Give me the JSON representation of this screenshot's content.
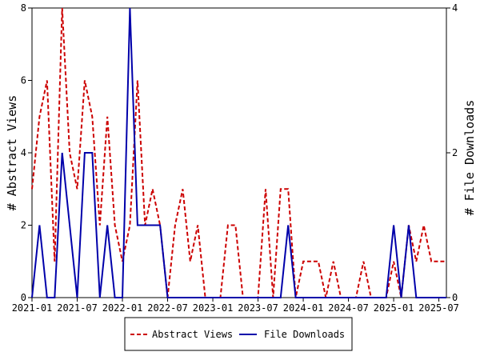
{
  "chart_data": {
    "type": "line",
    "y_left_label": "# Abstract Views",
    "y_right_label": "# File Downloads",
    "x_tick_labels": [
      "2021-01",
      "2021-07",
      "2022-01",
      "2022-07",
      "2023-01",
      "2023-07",
      "2024-01",
      "2024-07",
      "2025-01",
      "2025-07"
    ],
    "y_left_ticks": [
      0,
      2,
      4,
      6,
      8
    ],
    "y_right_ticks": [
      0,
      2,
      4
    ],
    "y_left_range": [
      0,
      8
    ],
    "y_right_range": [
      0,
      4
    ],
    "x_range_months": [
      "2021-01",
      "2025-08"
    ],
    "legend_position": "bottom-center",
    "series": [
      {
        "name": "Abstract Views",
        "axis": "left",
        "color": "#cc0000",
        "style": "dashed",
        "x": [
          "2021-01",
          "2021-02",
          "2021-03",
          "2021-04",
          "2021-05",
          "2021-06",
          "2021-07",
          "2021-08",
          "2021-09",
          "2021-10",
          "2021-11",
          "2021-12",
          "2022-01",
          "2022-02",
          "2022-03",
          "2022-04",
          "2022-05",
          "2022-06",
          "2022-07",
          "2022-08",
          "2022-09",
          "2022-10",
          "2022-11",
          "2022-12",
          "2023-01",
          "2023-02",
          "2023-03",
          "2023-04",
          "2023-05",
          "2023-06",
          "2023-07",
          "2023-08",
          "2023-09",
          "2023-10",
          "2023-11",
          "2023-12",
          "2024-01",
          "2024-02",
          "2024-03",
          "2024-04",
          "2024-05",
          "2024-06",
          "2024-07",
          "2024-08",
          "2024-09",
          "2024-10",
          "2024-11",
          "2024-12",
          "2025-01",
          "2025-02",
          "2025-03",
          "2025-04",
          "2025-05",
          "2025-06",
          "2025-07",
          "2025-08"
        ],
        "values": [
          3,
          5,
          6,
          1,
          8,
          4,
          3,
          6,
          5,
          2,
          5,
          2,
          1,
          2,
          6,
          2,
          3,
          2,
          0,
          2,
          3,
          1,
          2,
          0,
          0,
          0,
          2,
          2,
          0,
          0,
          0,
          3,
          0,
          3,
          3,
          0,
          1,
          1,
          1,
          0,
          1,
          0,
          0,
          0,
          1,
          0,
          0,
          0,
          1,
          0,
          2,
          1,
          2,
          1,
          1,
          1
        ]
      },
      {
        "name": "File Downloads",
        "axis": "right",
        "color": "#0000aa",
        "style": "solid",
        "x": [
          "2021-01",
          "2021-02",
          "2021-03",
          "2021-04",
          "2021-05",
          "2021-06",
          "2021-07",
          "2021-08",
          "2021-09",
          "2021-10",
          "2021-11",
          "2021-12",
          "2022-01",
          "2022-02",
          "2022-03",
          "2022-04",
          "2022-05",
          "2022-06",
          "2022-07",
          "2022-08",
          "2022-09",
          "2022-10",
          "2022-11",
          "2022-12",
          "2023-01",
          "2023-02",
          "2023-03",
          "2023-04",
          "2023-05",
          "2023-06",
          "2023-07",
          "2023-08",
          "2023-09",
          "2023-10",
          "2023-11",
          "2023-12",
          "2024-01",
          "2024-02",
          "2024-03",
          "2024-04",
          "2024-05",
          "2024-06",
          "2024-07",
          "2024-08",
          "2024-09",
          "2024-10",
          "2024-11",
          "2024-12",
          "2025-01",
          "2025-02",
          "2025-03",
          "2025-04",
          "2025-05",
          "2025-06",
          "2025-07",
          "2025-08"
        ],
        "values": [
          0,
          1,
          0,
          0,
          2,
          1,
          0,
          2,
          2,
          0,
          1,
          0,
          0,
          4,
          1,
          1,
          1,
          1,
          0,
          0,
          0,
          0,
          0,
          0,
          0,
          0,
          0,
          0,
          0,
          0,
          0,
          0,
          0,
          0,
          1,
          0,
          0,
          0,
          0,
          0,
          0,
          0,
          0,
          0,
          0,
          0,
          0,
          0,
          1,
          0,
          1,
          0,
          0,
          0,
          0,
          0
        ]
      }
    ]
  }
}
